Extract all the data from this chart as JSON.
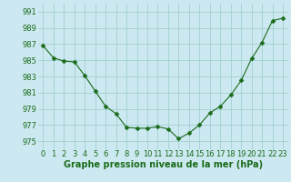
{
  "x": [
    0,
    1,
    2,
    3,
    4,
    5,
    6,
    7,
    8,
    9,
    10,
    11,
    12,
    13,
    14,
    15,
    16,
    17,
    18,
    19,
    20,
    21,
    22,
    23
  ],
  "y": [
    986.8,
    985.3,
    984.9,
    984.8,
    983.1,
    981.2,
    979.3,
    978.4,
    976.7,
    976.6,
    976.6,
    976.8,
    976.5,
    975.3,
    976.0,
    977.0,
    978.5,
    979.3,
    980.7,
    982.5,
    985.2,
    987.2,
    989.9,
    990.2
  ],
  "line_color": "#1a6b1a",
  "marker": "D",
  "marker_size": 2.5,
  "bg_color": "#cce8f0",
  "grid_color": "#99cccc",
  "xlabel": "Graphe pression niveau de la mer (hPa)",
  "xlabel_fontsize": 7,
  "tick_fontsize": 6,
  "ylim": [
    974,
    992
  ],
  "yticks": [
    975,
    977,
    979,
    981,
    983,
    985,
    987,
    989,
    991
  ],
  "xlim": [
    -0.5,
    23.5
  ],
  "xticks": [
    0,
    1,
    2,
    3,
    4,
    5,
    6,
    7,
    8,
    9,
    10,
    11,
    12,
    13,
    14,
    15,
    16,
    17,
    18,
    19,
    20,
    21,
    22,
    23
  ]
}
